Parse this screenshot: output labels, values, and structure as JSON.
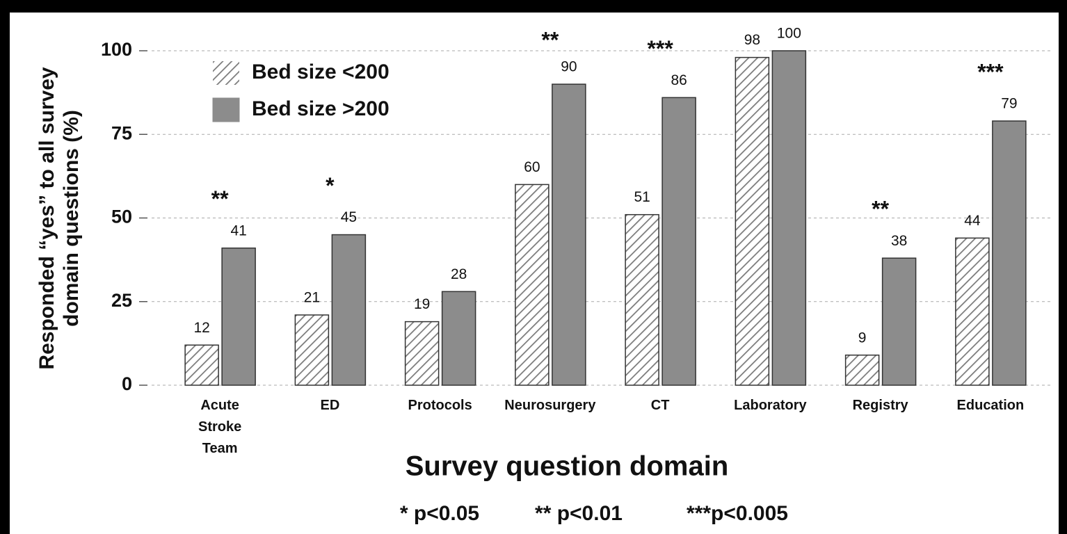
{
  "chart_data": {
    "type": "bar",
    "ylabel": [
      "Responded “yes” to all survey",
      "domain questions (%)"
    ],
    "xlabel": "Survey question domain",
    "categories": [
      "Acute Stroke Team",
      "ED",
      "Protocols",
      "Neurosurgery",
      "CT",
      "Laboratory",
      "Registry",
      "Education"
    ],
    "series": [
      {
        "name": "Bed size <200",
        "color": "#7a7a7a",
        "hatch": true,
        "values": [
          12,
          21,
          19,
          60,
          51,
          98,
          9,
          44
        ]
      },
      {
        "name": "Bed size >200",
        "color": "#8c8c8c",
        "hatch": false,
        "values": [
          41,
          45,
          28,
          90,
          86,
          100,
          38,
          79
        ]
      }
    ],
    "annotations": [
      "**",
      "*",
      null,
      "**",
      "***",
      null,
      "**",
      "***"
    ],
    "footnotes": [
      "* p<0.05",
      "** p<0.01",
      "***p<0.005"
    ],
    "ylim": [
      0,
      100
    ],
    "yticks": [
      0,
      25,
      50,
      75,
      100
    ],
    "grid": true,
    "legend": "upper left"
  }
}
